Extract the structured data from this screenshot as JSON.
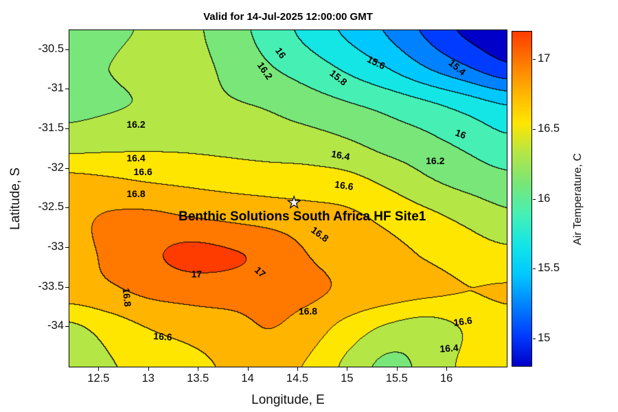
{
  "title": "Valid for 14-Jul-2025 12:00:00 GMT",
  "axes": {
    "xlabel": "Longitude, E",
    "ylabel": "Latitude, S"
  },
  "colorbar": {
    "label": "Air Temperature, C",
    "ticks": [
      15,
      15.5,
      16,
      16.5,
      17
    ]
  },
  "chart_data": {
    "type": "heatmap",
    "variant": "filled_contour",
    "title": "Valid for 14-Jul-2025 12:00:00 GMT",
    "xlabel": "Longitude, E",
    "ylabel": "Latitude, S",
    "xlim": [
      12.2,
      16.6
    ],
    "ylim": [
      -34.5,
      -30.25
    ],
    "xticks": [
      12.5,
      13,
      13.5,
      14,
      14.5,
      15,
      15.5,
      16
    ],
    "yticks": [
      -30.5,
      -31,
      -31.5,
      -32,
      -32.5,
      -33,
      -33.5,
      -34
    ],
    "vmin": 14.8,
    "vmax": 17.2,
    "contour_interval": 0.2,
    "band_colors": [
      "#0000c8",
      "#003cff",
      "#0082ff",
      "#00c8ff",
      "#14e6e6",
      "#46f0b4",
      "#78e678",
      "#b4e646",
      "#ffe600",
      "#ffb400",
      "#ff7800",
      "#ff3c00"
    ],
    "grid": {
      "lon": [
        12.2,
        12.6,
        13.0,
        13.4,
        13.8,
        14.2,
        14.6,
        15.0,
        15.4,
        15.8,
        16.2,
        16.6
      ],
      "lat": [
        -30.25,
        -30.72,
        -31.19,
        -31.66,
        -32.14,
        -32.61,
        -33.08,
        -33.55,
        -34.03,
        -34.5
      ],
      "temperature": [
        [
          16.1,
          16.16,
          16.22,
          16.24,
          16.1,
          15.92,
          15.74,
          15.56,
          15.38,
          15.16,
          14.96,
          14.86
        ],
        [
          16.15,
          16.2,
          16.26,
          16.26,
          16.16,
          16.02,
          15.9,
          15.76,
          15.6,
          15.4,
          15.22,
          15.05
        ],
        [
          16.15,
          16.18,
          16.22,
          16.25,
          16.22,
          16.18,
          16.1,
          16.02,
          15.94,
          15.84,
          15.72,
          15.6
        ],
        [
          16.3,
          16.33,
          16.35,
          16.35,
          16.33,
          16.3,
          16.28,
          16.22,
          16.12,
          16.05,
          15.95,
          15.85
        ],
        [
          16.65,
          16.62,
          16.58,
          16.55,
          16.52,
          16.5,
          16.48,
          16.45,
          16.35,
          16.22,
          16.12,
          16.05
        ],
        [
          16.75,
          16.82,
          16.84,
          16.8,
          16.76,
          16.72,
          16.68,
          16.64,
          16.55,
          16.45,
          16.35,
          16.25
        ],
        [
          16.72,
          16.84,
          16.96,
          17.05,
          17.02,
          16.95,
          16.8,
          16.72,
          16.66,
          16.58,
          16.5,
          16.45
        ],
        [
          16.7,
          16.76,
          16.84,
          16.88,
          16.9,
          16.88,
          16.84,
          16.76,
          16.7,
          16.64,
          16.6,
          16.62
        ],
        [
          16.35,
          16.48,
          16.6,
          16.66,
          16.7,
          16.8,
          16.7,
          16.52,
          16.36,
          16.3,
          16.42,
          16.52
        ],
        [
          16.28,
          16.38,
          16.48,
          16.55,
          16.62,
          16.66,
          16.58,
          16.35,
          16.15,
          16.26,
          16.45,
          16.58
        ]
      ]
    },
    "contour_labels": [
      {
        "text": "16",
        "lon": 14.33,
        "lat": -30.54,
        "rot": 55
      },
      {
        "text": "16.2",
        "lon": 14.17,
        "lat": -30.76,
        "rot": 55
      },
      {
        "text": "15.8",
        "lon": 14.91,
        "lat": -30.85,
        "rot": 38
      },
      {
        "text": "15.6",
        "lon": 15.29,
        "lat": -30.66,
        "rot": 26
      },
      {
        "text": "15.4",
        "lon": 16.1,
        "lat": -30.72,
        "rot": 40
      },
      {
        "text": "16",
        "lon": 16.14,
        "lat": -31.56,
        "rot": 20
      },
      {
        "text": "16.2",
        "lon": 15.88,
        "lat": -31.9,
        "rot": 0
      },
      {
        "text": "16.2",
        "lon": 12.87,
        "lat": -31.44,
        "rot": 0
      },
      {
        "text": "16.4",
        "lon": 14.93,
        "lat": -31.83,
        "rot": 10
      },
      {
        "text": "16.4",
        "lon": 12.87,
        "lat": -31.86,
        "rot": 0
      },
      {
        "text": "16.6",
        "lon": 12.94,
        "lat": -32.04,
        "rot": 0
      },
      {
        "text": "16.6",
        "lon": 14.96,
        "lat": -32.21,
        "rot": 8
      },
      {
        "text": "16.8",
        "lon": 12.87,
        "lat": -32.31,
        "rot": 0
      },
      {
        "text": "16.8",
        "lon": 14.72,
        "lat": -32.83,
        "rot": 36
      },
      {
        "text": "17",
        "lon": 13.48,
        "lat": -33.33,
        "rot": 0
      },
      {
        "text": "17",
        "lon": 14.12,
        "lat": -33.3,
        "rot": 42
      },
      {
        "text": "16.8",
        "lon": 12.78,
        "lat": -33.62,
        "rot": 84
      },
      {
        "text": "16.8",
        "lon": 14.6,
        "lat": -33.8,
        "rot": 0
      },
      {
        "text": "16.6",
        "lon": 13.14,
        "lat": -34.12,
        "rot": 4
      },
      {
        "text": "16.6",
        "lon": 16.16,
        "lat": -33.93,
        "rot": -8
      },
      {
        "text": "16.4",
        "lon": 16.02,
        "lat": -34.27,
        "rot": -4
      }
    ],
    "station": {
      "name": "Benthic Solutions South Africa HF Site1",
      "lon": 14.46,
      "lat": -32.44,
      "marker": "star"
    }
  }
}
